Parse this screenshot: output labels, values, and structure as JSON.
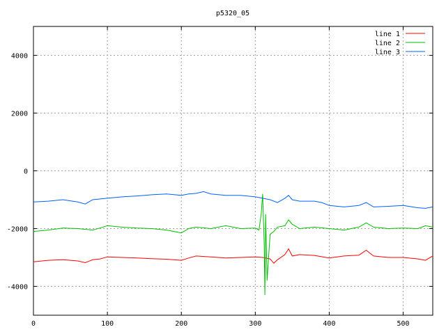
{
  "chart_data": {
    "type": "line",
    "title": "p5320_05",
    "xlabel": "",
    "ylabel": "",
    "xlim": [
      0,
      540
    ],
    "ylim": [
      -5000,
      5000
    ],
    "x_ticks": [
      0,
      100,
      200,
      300,
      400,
      500
    ],
    "y_ticks": [
      -4000,
      -2000,
      0,
      2000,
      4000
    ],
    "grid": true,
    "legend_position": "top-right",
    "series": [
      {
        "name": "line 1",
        "color": "#ff0000",
        "x": [
          0,
          20,
          40,
          60,
          70,
          80,
          90,
          100,
          120,
          140,
          160,
          180,
          200,
          210,
          220,
          240,
          260,
          280,
          300,
          310,
          320,
          325,
          330,
          340,
          345,
          350,
          360,
          380,
          400,
          420,
          440,
          450,
          460,
          480,
          500,
          520,
          530,
          540
        ],
        "y": [
          -3150,
          -3100,
          -3080,
          -3120,
          -3180,
          -3080,
          -3050,
          -2980,
          -3000,
          -3020,
          -3040,
          -3060,
          -3100,
          -3020,
          -2950,
          -2980,
          -3020,
          -3000,
          -2980,
          -3000,
          -3050,
          -3200,
          -3080,
          -2900,
          -2700,
          -2950,
          -2900,
          -2930,
          -3020,
          -2950,
          -2920,
          -2750,
          -2950,
          -3000,
          -3000,
          -3050,
          -3100,
          -2950
        ]
      },
      {
        "name": "line 2",
        "color": "#00c000",
        "x": [
          0,
          20,
          40,
          60,
          80,
          90,
          100,
          120,
          140,
          160,
          180,
          200,
          210,
          220,
          240,
          260,
          280,
          300,
          305,
          308,
          310,
          312,
          313,
          314,
          316,
          318,
          320,
          325,
          330,
          340,
          345,
          350,
          360,
          380,
          400,
          420,
          440,
          450,
          460,
          480,
          500,
          520,
          530,
          540
        ],
        "y": [
          -2100,
          -2050,
          -1980,
          -2000,
          -2050,
          -1980,
          -1900,
          -1950,
          -1980,
          -2000,
          -2050,
          -2150,
          -2000,
          -1950,
          -2000,
          -1900,
          -2000,
          -1980,
          -2050,
          -1500,
          -800,
          -2500,
          -4300,
          -1500,
          -3800,
          -3000,
          -2200,
          -2100,
          -1950,
          -1900,
          -1700,
          -1850,
          -2000,
          -1950,
          -2000,
          -2050,
          -1950,
          -1800,
          -1950,
          -2000,
          -1980,
          -2000,
          -1900,
          -1950
        ]
      },
      {
        "name": "line 3",
        "color": "#0060ff",
        "x": [
          0,
          20,
          40,
          60,
          70,
          80,
          100,
          120,
          140,
          160,
          180,
          200,
          210,
          220,
          230,
          240,
          260,
          280,
          300,
          310,
          320,
          330,
          340,
          345,
          350,
          360,
          380,
          390,
          400,
          420,
          440,
          450,
          460,
          480,
          500,
          520,
          530,
          540
        ],
        "y": [
          -1080,
          -1050,
          -1000,
          -1080,
          -1150,
          -1000,
          -950,
          -900,
          -870,
          -830,
          -800,
          -850,
          -800,
          -780,
          -720,
          -800,
          -850,
          -850,
          -900,
          -950,
          -1000,
          -1100,
          -950,
          -850,
          -1000,
          -1050,
          -1050,
          -1100,
          -1200,
          -1250,
          -1200,
          -1100,
          -1250,
          -1230,
          -1200,
          -1280,
          -1300,
          -1250
        ]
      }
    ]
  }
}
